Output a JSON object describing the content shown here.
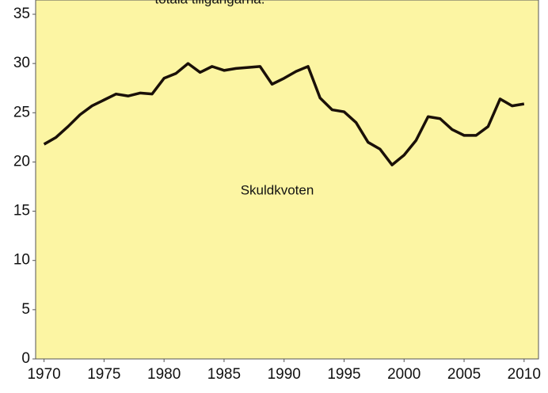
{
  "chart_data": {
    "type": "line",
    "title": "totala tillgångarna.",
    "annotation": "Skuldkvoten",
    "x": [
      1970,
      1971,
      1972,
      1973,
      1974,
      1975,
      1976,
      1977,
      1978,
      1979,
      1980,
      1981,
      1982,
      1983,
      1984,
      1985,
      1986,
      1987,
      1988,
      1989,
      1990,
      1991,
      1992,
      1993,
      1994,
      1995,
      1996,
      1997,
      1998,
      1999,
      2000,
      2001,
      2002,
      2003,
      2004,
      2005,
      2006,
      2007,
      2008,
      2009,
      2010
    ],
    "series": [
      {
        "name": "Skuldkvoten",
        "color": "#1a1008",
        "values": [
          21.8,
          22.5,
          23.6,
          24.8,
          25.7,
          26.3,
          26.9,
          26.7,
          27.0,
          26.9,
          28.5,
          29.0,
          30.0,
          29.1,
          29.7,
          29.3,
          29.5,
          29.6,
          29.7,
          27.9,
          28.5,
          29.2,
          29.7,
          26.5,
          25.3,
          25.1,
          24.0,
          22.0,
          21.3,
          19.7,
          20.7,
          22.2,
          24.6,
          24.4,
          23.3,
          22.7,
          22.7,
          23.6,
          26.4,
          25.7,
          25.9
        ]
      }
    ],
    "xlim": [
      1969.3,
      2011.2
    ],
    "xticks": [
      1970,
      1975,
      1980,
      1985,
      1990,
      1995,
      2000,
      2005,
      2010
    ],
    "ylim": [
      0,
      35
    ],
    "yticks": [
      0,
      5,
      10,
      15,
      20,
      25,
      30,
      35
    ],
    "background": "#fcf5a3"
  }
}
